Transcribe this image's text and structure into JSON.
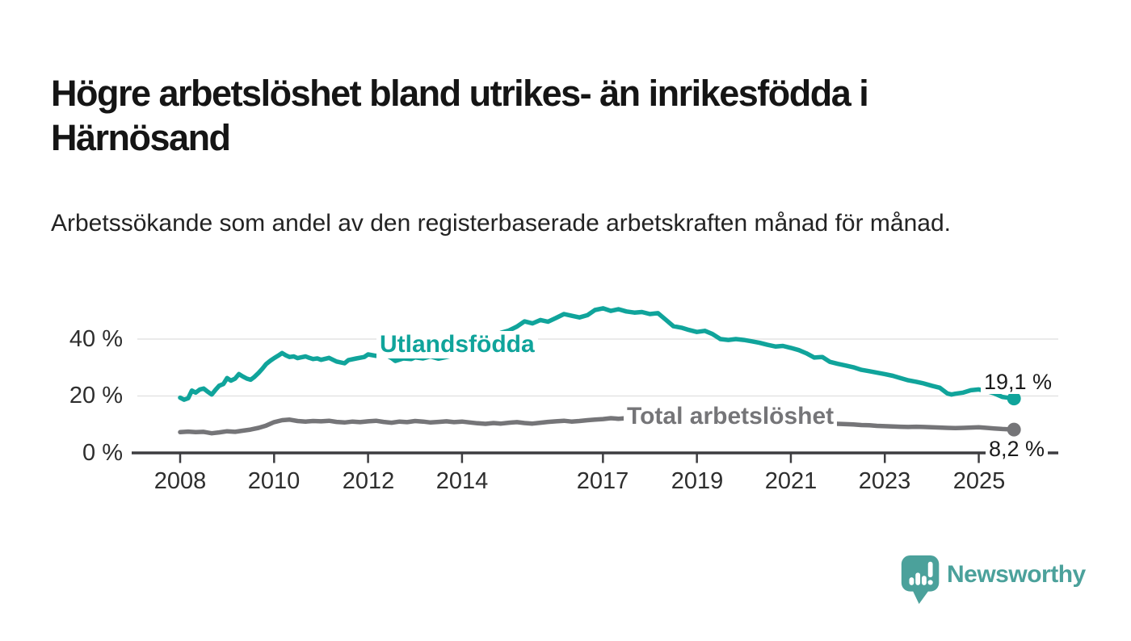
{
  "header": {
    "title": "Högre arbetslöshet bland utrikes- än inrikesfödda i Härnösand",
    "subtitle": "Arbetssökande som andel av den registerbaserade arbetskraften månad för månad."
  },
  "chart_data": {
    "type": "line",
    "title": "Högre arbetslöshet bland utrikes- än inrikesfödda i Härnösand",
    "xlabel": "",
    "ylabel": "Arbetssökande som andel av den registerbaserade arbetskraften (%)",
    "x_axis": {
      "tick_years": [
        2008,
        2010,
        2012,
        2014,
        2017,
        2019,
        2021,
        2023,
        2025
      ],
      "tick_labels": [
        "2008",
        "2010",
        "2012",
        "2014",
        "2017",
        "2019",
        "2021",
        "2023",
        "2025"
      ],
      "range": [
        2008,
        2025.75
      ]
    },
    "y_axis": {
      "ticks": [
        0,
        20,
        40
      ],
      "tick_labels": [
        "0 %",
        "20 %",
        "40 %"
      ],
      "range": [
        0,
        55
      ],
      "unit": "%",
      "grid": true
    },
    "legend_position": "inline-labels",
    "colors": {
      "grid": "#e4e4e4",
      "axis": "#3d3d40",
      "tick_text": "#2e2e2e"
    },
    "series": [
      {
        "name": "Utlandsfödda",
        "color": "#10A49B",
        "end_value": 19.1,
        "end_label": "19,1 %",
        "points": [
          [
            2008.0,
            19.4
          ],
          [
            2008.08,
            18.7
          ],
          [
            2008.17,
            19.2
          ],
          [
            2008.25,
            21.9
          ],
          [
            2008.33,
            21.2
          ],
          [
            2008.42,
            22.3
          ],
          [
            2008.5,
            22.6
          ],
          [
            2008.58,
            21.6
          ],
          [
            2008.67,
            20.5
          ],
          [
            2008.75,
            22.1
          ],
          [
            2008.83,
            23.6
          ],
          [
            2008.92,
            24.2
          ],
          [
            2009.0,
            26.3
          ],
          [
            2009.08,
            25.4
          ],
          [
            2009.17,
            26.1
          ],
          [
            2009.25,
            27.7
          ],
          [
            2009.33,
            26.9
          ],
          [
            2009.42,
            26.1
          ],
          [
            2009.5,
            25.7
          ],
          [
            2009.58,
            26.7
          ],
          [
            2009.67,
            28.1
          ],
          [
            2009.75,
            29.6
          ],
          [
            2009.83,
            31.2
          ],
          [
            2009.92,
            32.4
          ],
          [
            2010.0,
            33.3
          ],
          [
            2010.08,
            34.1
          ],
          [
            2010.17,
            35.1
          ],
          [
            2010.25,
            34.3
          ],
          [
            2010.33,
            33.7
          ],
          [
            2010.42,
            33.9
          ],
          [
            2010.5,
            33.3
          ],
          [
            2010.58,
            33.6
          ],
          [
            2010.67,
            33.9
          ],
          [
            2010.75,
            33.4
          ],
          [
            2010.83,
            33.0
          ],
          [
            2010.92,
            33.2
          ],
          [
            2011.0,
            32.7
          ],
          [
            2011.17,
            33.4
          ],
          [
            2011.33,
            32.1
          ],
          [
            2011.5,
            31.5
          ],
          [
            2011.58,
            32.6
          ],
          [
            2011.75,
            33.2
          ],
          [
            2011.92,
            33.7
          ],
          [
            2012.0,
            34.6
          ],
          [
            2012.17,
            34.1
          ],
          [
            2012.33,
            34.8
          ],
          [
            2012.5,
            33.3
          ],
          [
            2012.58,
            32.3
          ],
          [
            2012.75,
            33.2
          ],
          [
            2012.92,
            33.0
          ],
          [
            2013.0,
            33.6
          ],
          [
            2013.17,
            33.2
          ],
          [
            2013.33,
            33.9
          ],
          [
            2013.5,
            33.1
          ],
          [
            2013.67,
            33.7
          ],
          [
            2013.83,
            34.3
          ],
          [
            2014.0,
            35.2
          ],
          [
            2014.17,
            35.9
          ],
          [
            2014.33,
            36.4
          ],
          [
            2014.5,
            38.2
          ],
          [
            2014.67,
            40.8
          ],
          [
            2014.83,
            42.2
          ],
          [
            2015.0,
            43.0
          ],
          [
            2015.17,
            44.4
          ],
          [
            2015.33,
            46.2
          ],
          [
            2015.5,
            45.5
          ],
          [
            2015.67,
            46.7
          ],
          [
            2015.83,
            46.1
          ],
          [
            2016.0,
            47.4
          ],
          [
            2016.17,
            48.8
          ],
          [
            2016.33,
            48.2
          ],
          [
            2016.5,
            47.6
          ],
          [
            2016.67,
            48.4
          ],
          [
            2016.83,
            50.2
          ],
          [
            2017.0,
            50.8
          ],
          [
            2017.17,
            49.9
          ],
          [
            2017.33,
            50.5
          ],
          [
            2017.5,
            49.7
          ],
          [
            2017.67,
            49.3
          ],
          [
            2017.83,
            49.5
          ],
          [
            2018.0,
            48.8
          ],
          [
            2018.17,
            49.1
          ],
          [
            2018.33,
            46.9
          ],
          [
            2018.5,
            44.5
          ],
          [
            2018.67,
            44.0
          ],
          [
            2018.83,
            43.2
          ],
          [
            2019.0,
            42.5
          ],
          [
            2019.17,
            42.9
          ],
          [
            2019.33,
            41.8
          ],
          [
            2019.5,
            40.0
          ],
          [
            2019.67,
            39.7
          ],
          [
            2019.83,
            40.0
          ],
          [
            2020.0,
            39.7
          ],
          [
            2020.17,
            39.2
          ],
          [
            2020.33,
            38.7
          ],
          [
            2020.5,
            38.0
          ],
          [
            2020.67,
            37.4
          ],
          [
            2020.83,
            37.6
          ],
          [
            2021.0,
            36.9
          ],
          [
            2021.17,
            36.1
          ],
          [
            2021.33,
            35.0
          ],
          [
            2021.5,
            33.5
          ],
          [
            2021.67,
            33.7
          ],
          [
            2021.83,
            32.0
          ],
          [
            2022.0,
            31.3
          ],
          [
            2022.17,
            30.7
          ],
          [
            2022.33,
            30.1
          ],
          [
            2022.5,
            29.2
          ],
          [
            2022.67,
            28.7
          ],
          [
            2022.83,
            28.2
          ],
          [
            2023.0,
            27.7
          ],
          [
            2023.17,
            27.1
          ],
          [
            2023.33,
            26.3
          ],
          [
            2023.5,
            25.5
          ],
          [
            2023.67,
            25.0
          ],
          [
            2023.83,
            24.4
          ],
          [
            2024.0,
            23.6
          ],
          [
            2024.17,
            22.9
          ],
          [
            2024.33,
            20.9
          ],
          [
            2024.42,
            20.5
          ],
          [
            2024.5,
            20.8
          ],
          [
            2024.67,
            21.2
          ],
          [
            2024.83,
            22.0
          ],
          [
            2025.0,
            22.3
          ],
          [
            2025.17,
            21.7
          ],
          [
            2025.33,
            20.9
          ],
          [
            2025.5,
            19.7
          ],
          [
            2025.58,
            19.5
          ],
          [
            2025.75,
            19.1
          ]
        ]
      },
      {
        "name": "Total arbetslöshet",
        "color": "#757578",
        "end_value": 8.2,
        "end_label": "8,2 %",
        "points": [
          [
            2008.0,
            7.3
          ],
          [
            2008.17,
            7.5
          ],
          [
            2008.33,
            7.3
          ],
          [
            2008.5,
            7.4
          ],
          [
            2008.67,
            6.9
          ],
          [
            2008.83,
            7.2
          ],
          [
            2009.0,
            7.6
          ],
          [
            2009.17,
            7.4
          ],
          [
            2009.33,
            7.8
          ],
          [
            2009.5,
            8.2
          ],
          [
            2009.67,
            8.8
          ],
          [
            2009.83,
            9.6
          ],
          [
            2010.0,
            10.8
          ],
          [
            2010.17,
            11.5
          ],
          [
            2010.33,
            11.7
          ],
          [
            2010.5,
            11.2
          ],
          [
            2010.67,
            11.0
          ],
          [
            2010.83,
            11.2
          ],
          [
            2011.0,
            11.1
          ],
          [
            2011.17,
            11.3
          ],
          [
            2011.33,
            10.9
          ],
          [
            2011.5,
            10.7
          ],
          [
            2011.67,
            11.0
          ],
          [
            2011.83,
            10.8
          ],
          [
            2012.0,
            11.1
          ],
          [
            2012.17,
            11.3
          ],
          [
            2012.33,
            10.9
          ],
          [
            2012.5,
            10.6
          ],
          [
            2012.67,
            11.0
          ],
          [
            2012.83,
            10.8
          ],
          [
            2013.0,
            11.2
          ],
          [
            2013.17,
            11.0
          ],
          [
            2013.33,
            10.7
          ],
          [
            2013.5,
            10.9
          ],
          [
            2013.67,
            11.1
          ],
          [
            2013.83,
            10.8
          ],
          [
            2014.0,
            11.0
          ],
          [
            2014.17,
            10.7
          ],
          [
            2014.33,
            10.4
          ],
          [
            2014.5,
            10.2
          ],
          [
            2014.67,
            10.5
          ],
          [
            2014.83,
            10.3
          ],
          [
            2015.0,
            10.6
          ],
          [
            2015.17,
            10.8
          ],
          [
            2015.33,
            10.5
          ],
          [
            2015.5,
            10.3
          ],
          [
            2015.67,
            10.6
          ],
          [
            2015.83,
            10.9
          ],
          [
            2016.0,
            11.1
          ],
          [
            2016.17,
            11.3
          ],
          [
            2016.33,
            11.0
          ],
          [
            2016.5,
            11.2
          ],
          [
            2016.67,
            11.5
          ],
          [
            2016.83,
            11.7
          ],
          [
            2017.0,
            11.9
          ],
          [
            2017.17,
            12.2
          ],
          [
            2017.33,
            12.0
          ],
          [
            2017.5,
            12.2
          ],
          [
            2017.67,
            12.0
          ],
          [
            2018.0,
            11.8
          ],
          [
            2018.33,
            11.5
          ],
          [
            2018.67,
            11.3
          ],
          [
            2019.0,
            11.2
          ],
          [
            2019.33,
            11.0
          ],
          [
            2019.67,
            11.1
          ],
          [
            2020.0,
            11.4
          ],
          [
            2020.33,
            11.8
          ],
          [
            2020.67,
            11.5
          ],
          [
            2021.0,
            11.2
          ],
          [
            2021.33,
            10.8
          ],
          [
            2021.67,
            10.5
          ],
          [
            2022.0,
            10.2
          ],
          [
            2022.17,
            10.1
          ],
          [
            2022.33,
            10.0
          ],
          [
            2022.5,
            9.8
          ],
          [
            2022.67,
            9.7
          ],
          [
            2022.83,
            9.5
          ],
          [
            2023.0,
            9.4
          ],
          [
            2023.17,
            9.3
          ],
          [
            2023.33,
            9.2
          ],
          [
            2023.5,
            9.1
          ],
          [
            2023.67,
            9.2
          ],
          [
            2023.83,
            9.1
          ],
          [
            2024.0,
            9.0
          ],
          [
            2024.17,
            8.9
          ],
          [
            2024.33,
            8.8
          ],
          [
            2024.5,
            8.7
          ],
          [
            2024.67,
            8.8
          ],
          [
            2024.83,
            8.9
          ],
          [
            2025.0,
            9.0
          ],
          [
            2025.17,
            8.8
          ],
          [
            2025.33,
            8.6
          ],
          [
            2025.5,
            8.4
          ],
          [
            2025.75,
            8.2
          ]
        ]
      }
    ]
  },
  "branding": {
    "name": "Newsworthy",
    "color": "#4BA19B",
    "icon": "bar-chart-speech-bubble-icon"
  }
}
